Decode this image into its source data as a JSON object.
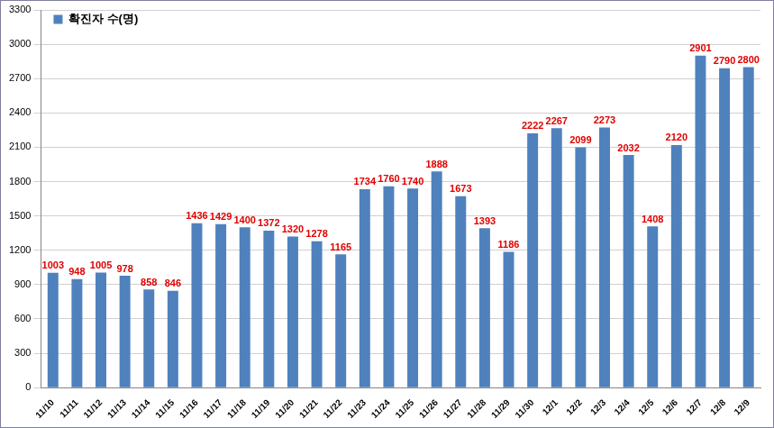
{
  "chart_data": {
    "type": "bar",
    "categories": [
      "11/10",
      "11/11",
      "11/12",
      "11/13",
      "11/14",
      "11/15",
      "11/16",
      "11/17",
      "11/18",
      "11/19",
      "11/20",
      "11/21",
      "11/22",
      "11/23",
      "11/24",
      "11/25",
      "11/26",
      "11/27",
      "11/28",
      "11/29",
      "11/30",
      "12/1",
      "12/2",
      "12/3",
      "12/4",
      "12/5",
      "12/6",
      "12/7",
      "12/8",
      "12/9"
    ],
    "series": [
      {
        "name": "확진자 수(명)",
        "color": "#4f81bd",
        "values": [
          1003,
          948,
          1005,
          978,
          858,
          846,
          1436,
          1429,
          1400,
          1372,
          1320,
          1278,
          1165,
          1734,
          1760,
          1740,
          1888,
          1673,
          1393,
          1186,
          2222,
          2267,
          2099,
          2273,
          2032,
          1408,
          2120,
          2901,
          2790,
          2800
        ]
      }
    ],
    "ylim": [
      0,
      3300
    ],
    "yticks": [
      0,
      300,
      600,
      900,
      1200,
      1500,
      1800,
      2100,
      2400,
      2700,
      3000,
      3300
    ],
    "grid": true,
    "legend": "upper left",
    "data_labels": true
  }
}
